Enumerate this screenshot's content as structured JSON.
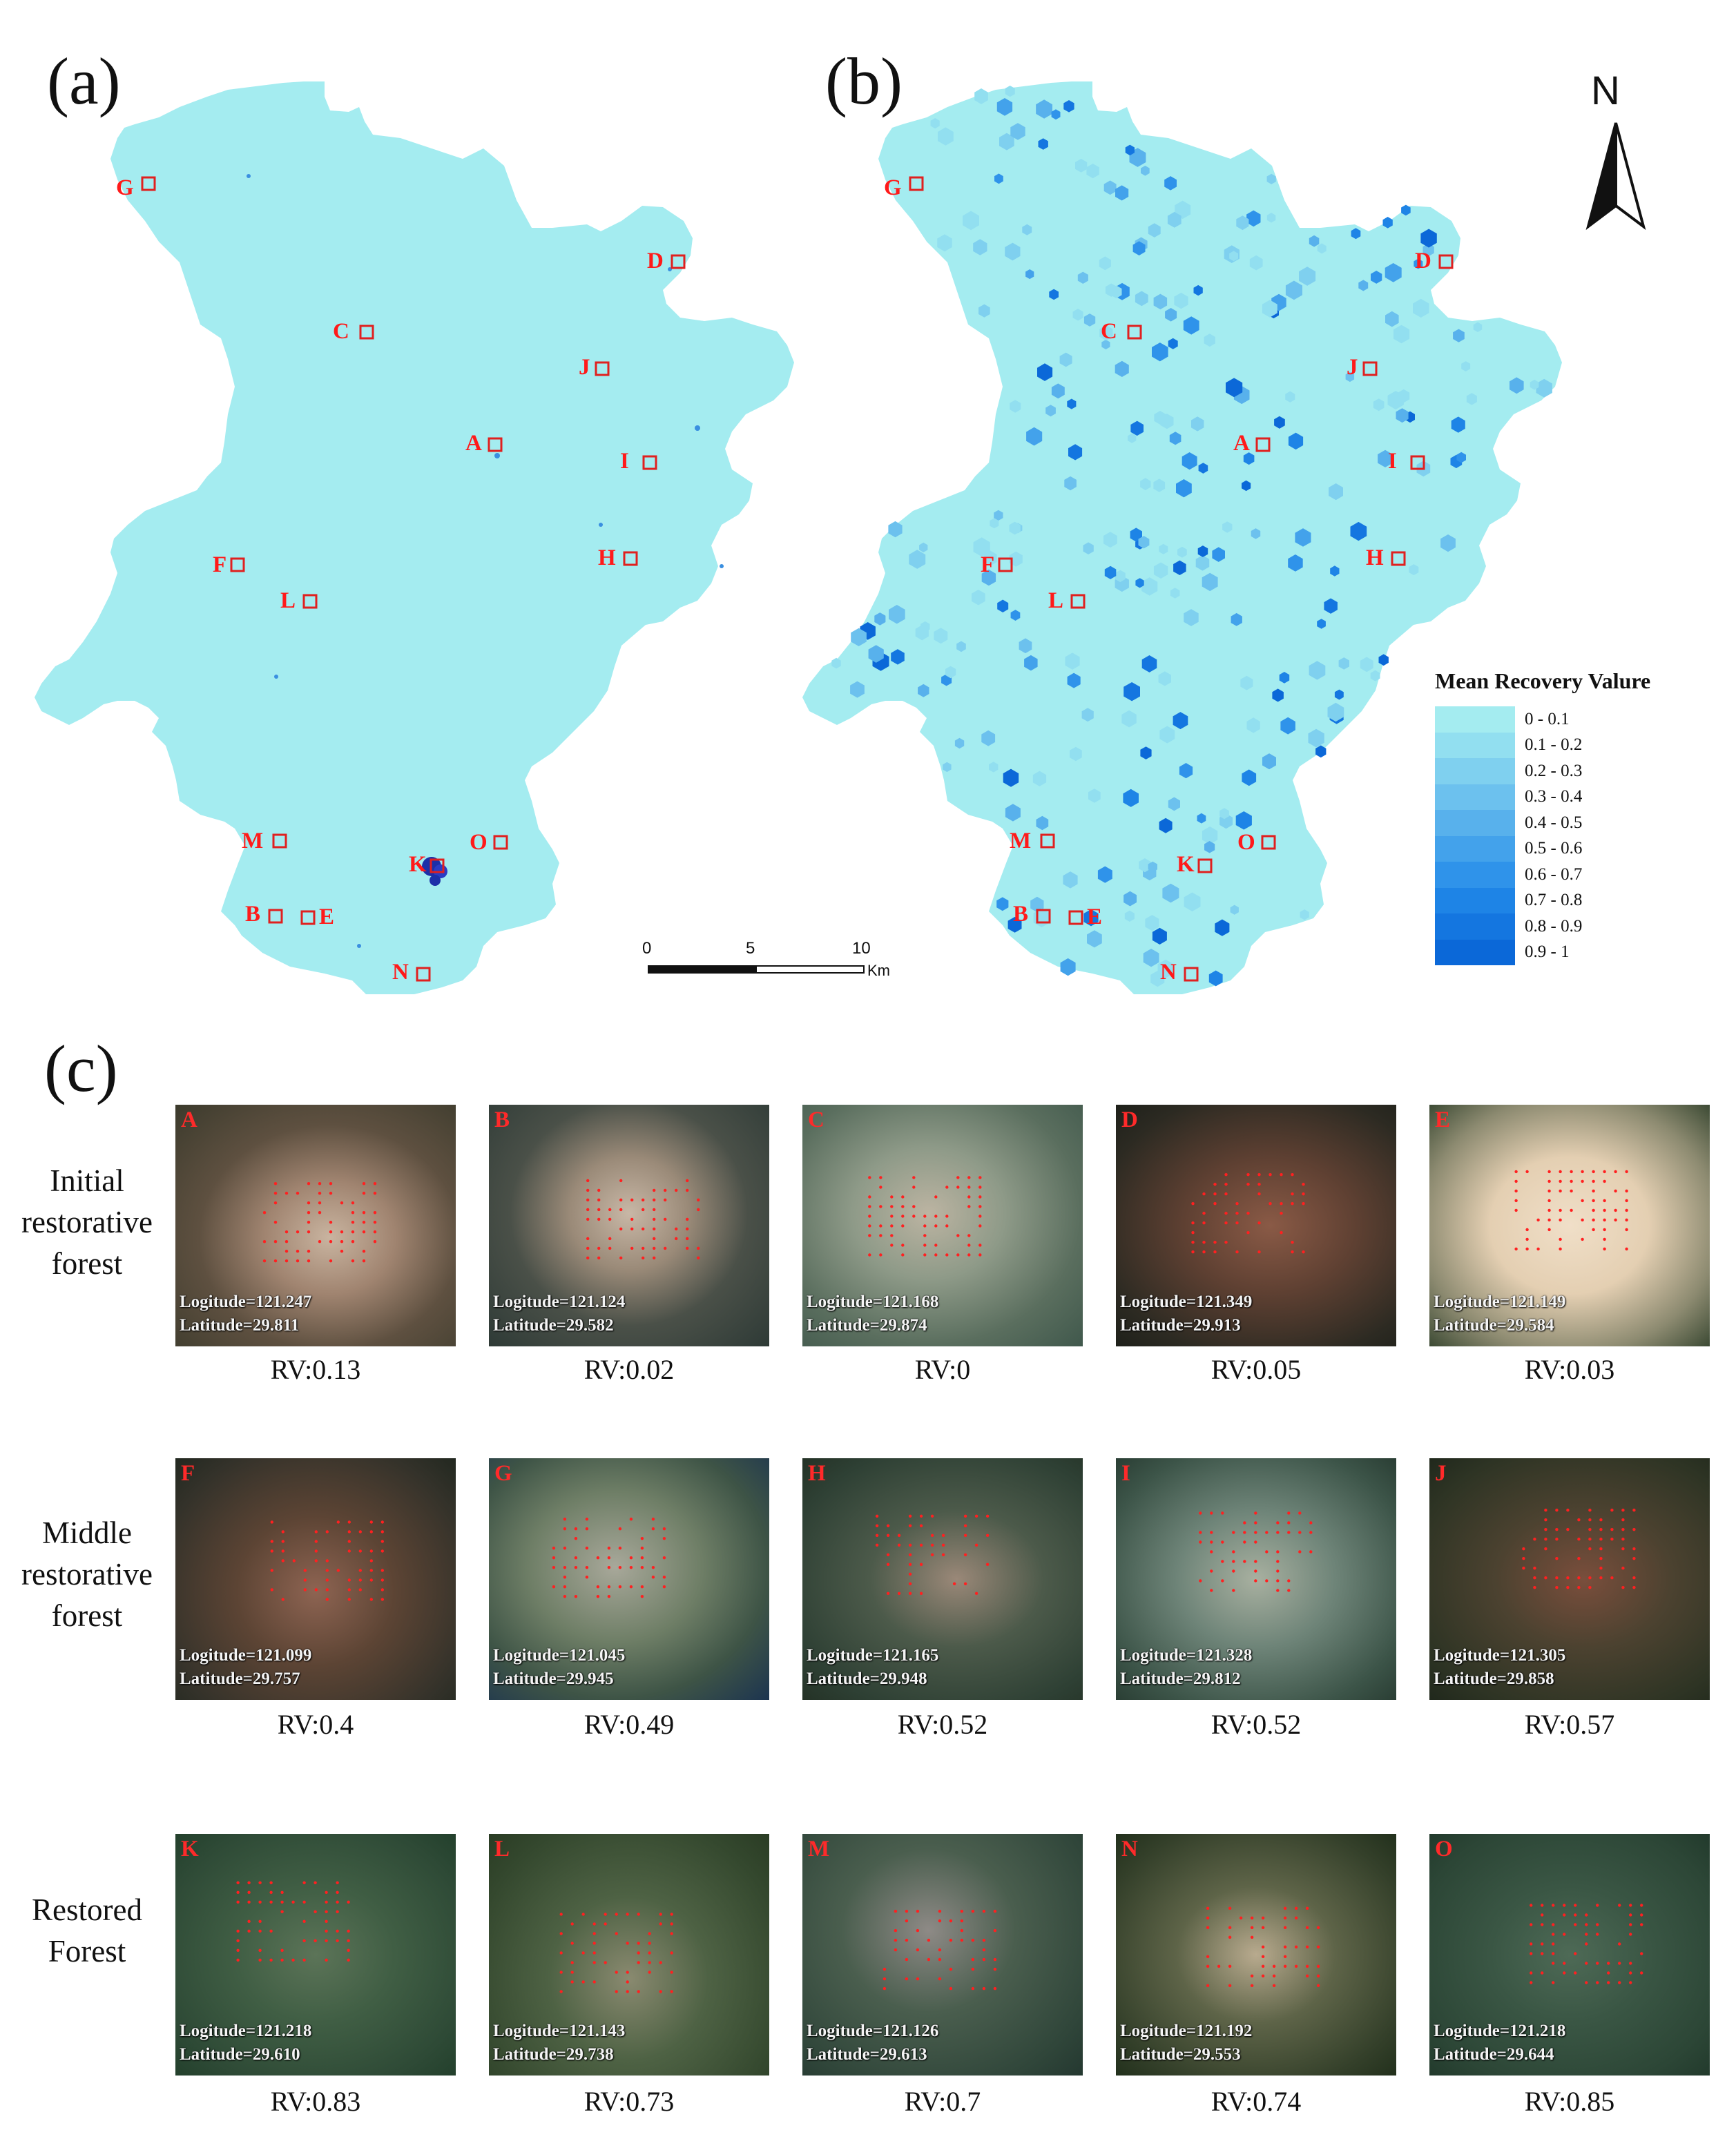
{
  "panels": {
    "a": "(a)",
    "b": "(b)",
    "c": "(c)"
  },
  "north": "N",
  "scale_bar": {
    "ticks": [
      "0",
      "5",
      "10"
    ],
    "unit": "Km"
  },
  "legend": {
    "title": "Mean Recovery Valure",
    "classes": [
      {
        "label": "0 - 0.1",
        "color": "#a4ecf0"
      },
      {
        "label": "0.1 - 0.2",
        "color": "#92dff0"
      },
      {
        "label": "0.2 - 0.3",
        "color": "#7fd0ef"
      },
      {
        "label": "0.3 - 0.4",
        "color": "#6cc1ee"
      },
      {
        "label": "0.4 - 0.5",
        "color": "#58b1ec"
      },
      {
        "label": "0.5 - 0.6",
        "color": "#43a2eb"
      },
      {
        "label": "0.6 - 0.7",
        "color": "#2f93ea"
      },
      {
        "label": "0.7 - 0.8",
        "color": "#1e84e6"
      },
      {
        "label": "0.8 - 0.9",
        "color": "#1476e0"
      },
      {
        "label": "0.9 - 1",
        "color": "#0b68d8"
      }
    ]
  },
  "sites": [
    "A",
    "B",
    "C",
    "D",
    "E",
    "F",
    "G",
    "H",
    "I",
    "J",
    "K",
    "L",
    "M",
    "N",
    "O"
  ],
  "rows": [
    {
      "label": "Initial restorative forest"
    },
    {
      "label": "Middle restorative forest"
    },
    {
      "label": "Restored Forest"
    }
  ],
  "tiles": [
    {
      "id": "A",
      "lon": "Logitude=121.247",
      "lat": "Latitude=29.811",
      "rv": "RV:0.13"
    },
    {
      "id": "B",
      "lon": "Logitude=121.124",
      "lat": "Latitude=29.582",
      "rv": "RV:0.02"
    },
    {
      "id": "C",
      "lon": "Logitude=121.168",
      "lat": "Latitude=29.874",
      "rv": "RV:0"
    },
    {
      "id": "D",
      "lon": "Logitude=121.349",
      "lat": "Latitude=29.913",
      "rv": "RV:0.05"
    },
    {
      "id": "E",
      "lon": "Logitude=121.149",
      "lat": "Latitude=29.584",
      "rv": "RV:0.03"
    },
    {
      "id": "F",
      "lon": "Logitude=121.099",
      "lat": "Latitude=29.757",
      "rv": "RV:0.4"
    },
    {
      "id": "G",
      "lon": "Logitude=121.045",
      "lat": "Latitude=29.945",
      "rv": "RV:0.49"
    },
    {
      "id": "H",
      "lon": "Logitude=121.165",
      "lat": "Latitude=29.948",
      "rv": "RV:0.52"
    },
    {
      "id": "I",
      "lon": "Logitude=121.328",
      "lat": "Latitude=29.812",
      "rv": "RV:0.52"
    },
    {
      "id": "J",
      "lon": "Logitude=121.305",
      "lat": "Latitude=29.858",
      "rv": "RV:0.57"
    },
    {
      "id": "K",
      "lon": "Logitude=121.218",
      "lat": "Latitude=29.610",
      "rv": "RV:0.83"
    },
    {
      "id": "L",
      "lon": "Logitude=121.143",
      "lat": "Latitude=29.738",
      "rv": "RV:0.73"
    },
    {
      "id": "M",
      "lon": "Logitude=121.126",
      "lat": "Latitude=29.613",
      "rv": "RV:0.7"
    },
    {
      "id": "N",
      "lon": "Logitude=121.192",
      "lat": "Latitude=29.553",
      "rv": "RV:0.74"
    },
    {
      "id": "O",
      "lon": "Logitude=121.218",
      "lat": "Latitude=29.644",
      "rv": "RV:0.85"
    }
  ]
}
